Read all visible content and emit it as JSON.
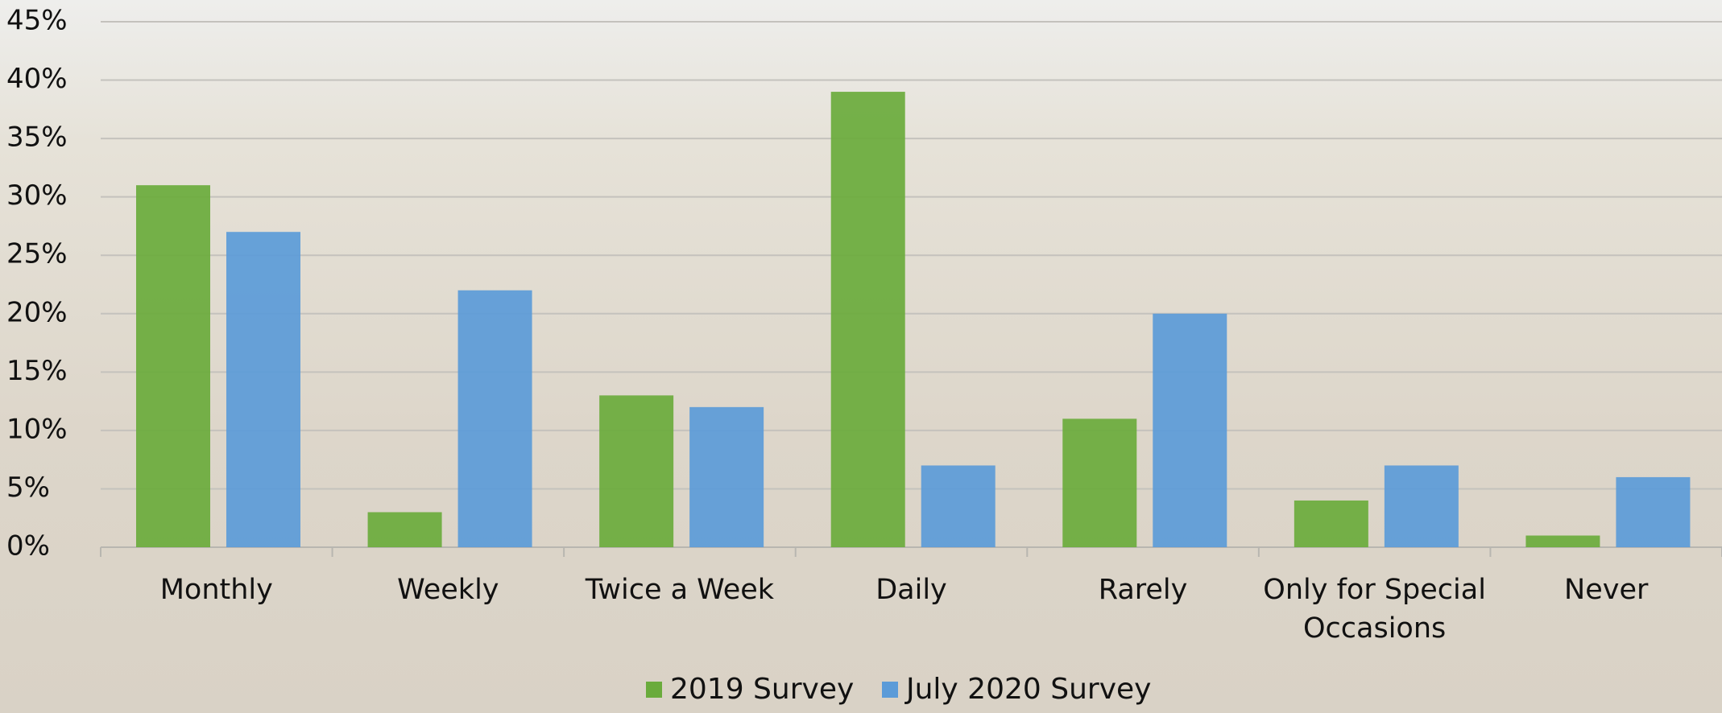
{
  "chart_data": {
    "type": "bar",
    "categories": [
      "Monthly",
      "Weekly",
      "Twice a Week",
      "Daily",
      "Rarely",
      "Only for Special Occasions",
      "Never"
    ],
    "series": [
      {
        "name": "2019 Survey",
        "color": "#6aab3c",
        "values": [
          31,
          3,
          13,
          39,
          11,
          4,
          1
        ]
      },
      {
        "name": "July 2020 Survey",
        "color": "#5b9bd8",
        "values": [
          27,
          22,
          12,
          7,
          20,
          7,
          6
        ]
      }
    ],
    "ylim": [
      0,
      45
    ],
    "yticks": [
      {
        "value": 0,
        "label": "0%"
      },
      {
        "value": 5,
        "label": "5%"
      },
      {
        "value": 10,
        "label": "10%"
      },
      {
        "value": 15,
        "label": "15%"
      },
      {
        "value": 20,
        "label": "20%"
      },
      {
        "value": 25,
        "label": "25%"
      },
      {
        "value": 30,
        "label": "30%"
      },
      {
        "value": 35,
        "label": "35%"
      },
      {
        "value": 40,
        "label": "40%"
      },
      {
        "value": 45,
        "label": "45%"
      }
    ],
    "grid": true
  }
}
